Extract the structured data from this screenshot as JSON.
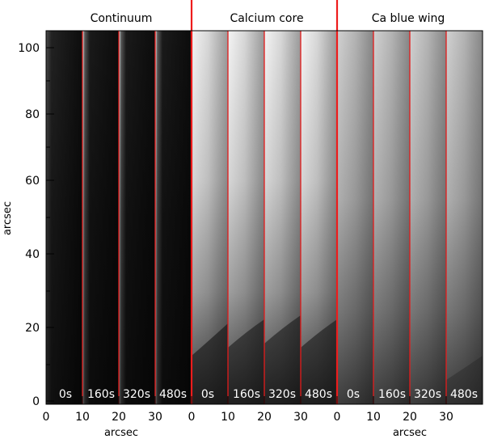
{
  "figure": {
    "panels": [
      {
        "title": "Continuum",
        "frames": [
          "0s",
          "160s",
          "320s",
          "480s"
        ],
        "x_ticks": [
          "0",
          "10",
          "20",
          "30"
        ]
      },
      {
        "title": "Calcium core",
        "frames": [
          "0s",
          "160s",
          "320s",
          "480s"
        ],
        "x_ticks": [
          "0",
          "10",
          "20",
          "30"
        ]
      },
      {
        "title": "Ca blue wing",
        "frames": [
          "0s",
          "160s",
          "320s",
          "480s"
        ],
        "x_ticks": [
          "0",
          "10",
          "20",
          "30"
        ]
      }
    ],
    "y_ticks": [
      "0",
      "20",
      "40",
      "60",
      "80",
      "100"
    ],
    "y_label": "arcsec",
    "x_label": "arcsec",
    "colors": {
      "separator": "#ff2020",
      "label_text": "#ffffff",
      "background": "#ffffff"
    }
  }
}
